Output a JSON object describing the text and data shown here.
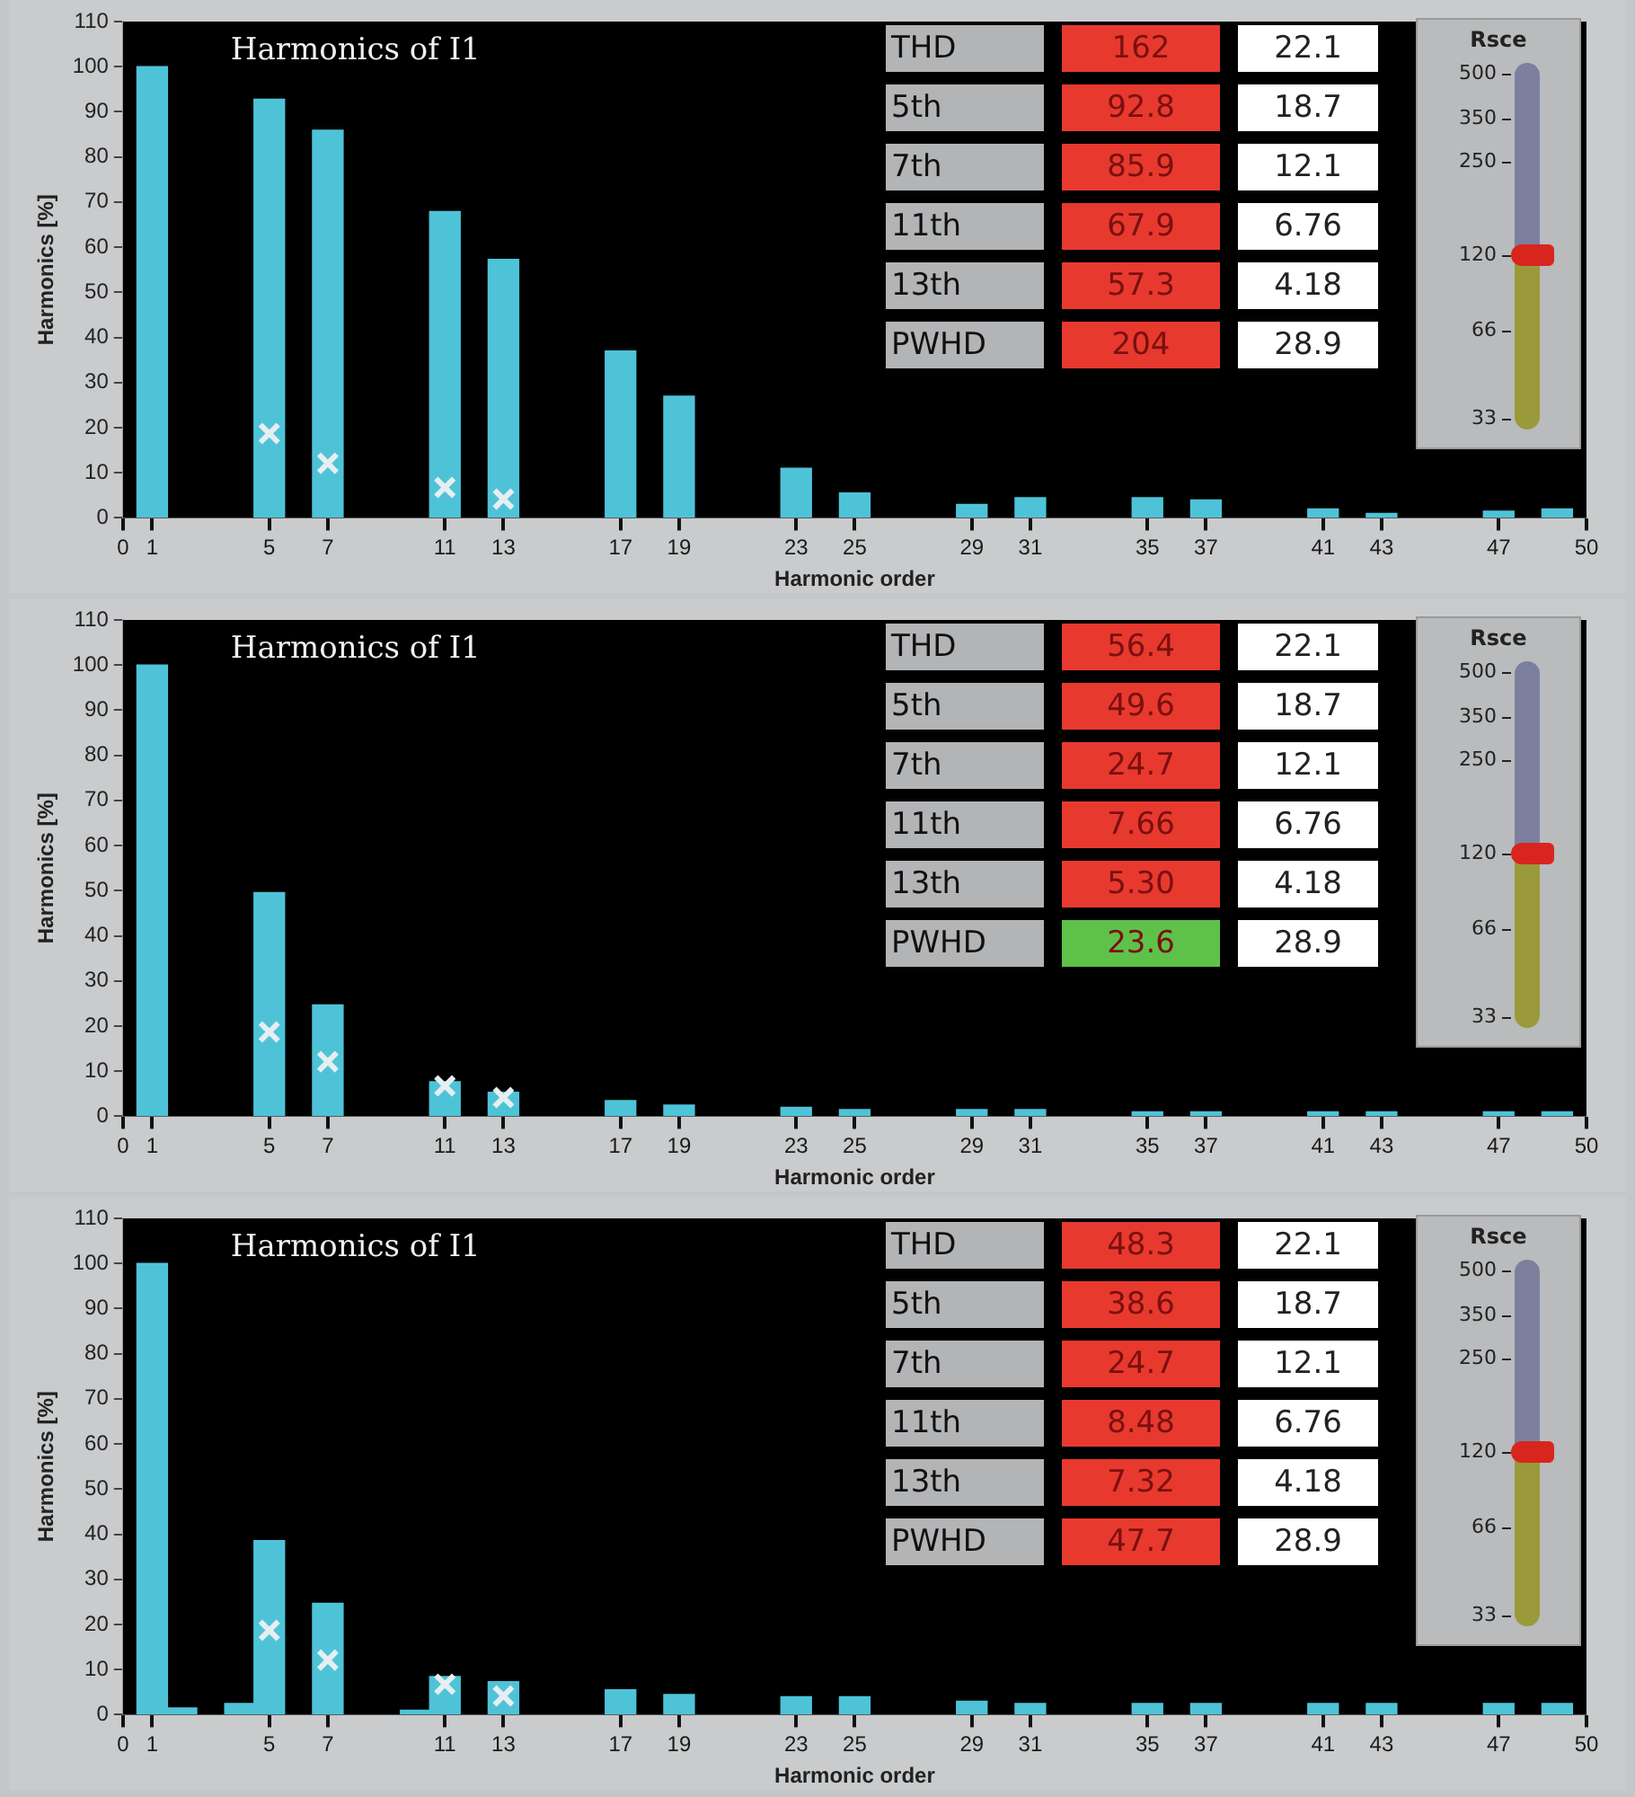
{
  "chart_data": [
    {
      "type": "bar",
      "title": "Harmonics of I1",
      "xlabel": "Harmonic order",
      "ylabel": "Harmonics [%]",
      "xlim": [
        0,
        50
      ],
      "xticks": [
        0,
        1,
        5,
        7,
        11,
        13,
        17,
        19,
        23,
        25,
        29,
        31,
        35,
        37,
        41,
        43,
        47,
        50
      ],
      "ylim": [
        0,
        110
      ],
      "yticks": [
        0,
        10,
        20,
        30,
        40,
        50,
        60,
        70,
        80,
        90,
        100,
        110
      ],
      "series": [
        {
          "color": "#4ec3d8",
          "x": [
            1,
            5,
            7,
            11,
            13,
            17,
            19,
            23,
            25,
            29,
            31,
            35,
            37,
            41,
            43,
            47,
            49
          ],
          "values": [
            100,
            92.8,
            85.9,
            67.9,
            57.3,
            37,
            27,
            11,
            5.5,
            3,
            4.5,
            4.5,
            4,
            2,
            1,
            1.5,
            2
          ]
        },
        {
          "type": "scatter",
          "color": "#e6eef0",
          "marker": "cross",
          "x": [
            5,
            7,
            11,
            13
          ],
          "values": [
            18.7,
            12.1,
            6.76,
            4.18
          ]
        }
      ],
      "annotations": [
        "THD",
        "162",
        "22.1",
        "5th",
        "92.8",
        "18.7",
        "7th",
        "85.9",
        "12.1",
        "11th",
        "67.9",
        "6.76",
        "13th",
        "57.3",
        "4.18",
        "PWHD",
        "204",
        "28.9",
        "Rsce",
        "500",
        "350",
        "250",
        "120",
        "66",
        "33"
      ]
    },
    {
      "type": "bar",
      "title": "Harmonics of I1",
      "xlabel": "Harmonic order",
      "ylabel": "Harmonics [%]",
      "xlim": [
        0,
        50
      ],
      "xticks": [
        0,
        1,
        5,
        7,
        11,
        13,
        17,
        19,
        23,
        25,
        29,
        31,
        35,
        37,
        41,
        43,
        47,
        50
      ],
      "ylim": [
        0,
        110
      ],
      "yticks": [
        0,
        10,
        20,
        30,
        40,
        50,
        60,
        70,
        80,
        90,
        100,
        110
      ],
      "series": [
        {
          "color": "#4ec3d8",
          "x": [
            1,
            5,
            7,
            11,
            13,
            17,
            19,
            23,
            25,
            29,
            31,
            35,
            37,
            41,
            43,
            47,
            49
          ],
          "values": [
            100,
            49.6,
            24.7,
            7.66,
            5.3,
            3.5,
            2.5,
            2,
            1.5,
            1.5,
            1.5,
            1,
            1,
            1,
            1,
            1,
            1
          ]
        },
        {
          "type": "scatter",
          "color": "#e6eef0",
          "marker": "cross",
          "x": [
            5,
            7,
            11,
            13
          ],
          "values": [
            18.7,
            12.1,
            6.76,
            4.18
          ]
        }
      ],
      "annotations": [
        "THD",
        "56.4",
        "22.1",
        "5th",
        "49.6",
        "18.7",
        "7th",
        "24.7",
        "12.1",
        "11th",
        "7.66",
        "6.76",
        "13th",
        "5.30",
        "4.18",
        "PWHD",
        "23.6",
        "28.9",
        "Rsce",
        "500",
        "350",
        "250",
        "120",
        "66",
        "33"
      ]
    },
    {
      "type": "bar",
      "title": "Harmonics of I1",
      "xlabel": "Harmonic order",
      "ylabel": "Harmonics [%]",
      "xlim": [
        0,
        50
      ],
      "xticks": [
        0,
        1,
        5,
        7,
        11,
        13,
        17,
        19,
        23,
        25,
        29,
        31,
        35,
        37,
        41,
        43,
        47,
        50
      ],
      "ylim": [
        0,
        110
      ],
      "yticks": [
        0,
        10,
        20,
        30,
        40,
        50,
        60,
        70,
        80,
        90,
        100,
        110
      ],
      "series": [
        {
          "color": "#4ec3d8",
          "x": [
            1,
            2,
            4,
            5,
            7,
            10,
            11,
            13,
            17,
            19,
            23,
            25,
            29,
            31,
            35,
            37,
            41,
            43,
            47,
            49
          ],
          "values": [
            100,
            1.5,
            2.5,
            38.6,
            24.7,
            1,
            8.48,
            7.32,
            5.5,
            4.5,
            4,
            4,
            3,
            2.5,
            2.5,
            2.5,
            2.5,
            2.5,
            2.5,
            2.5
          ]
        },
        {
          "type": "scatter",
          "color": "#e6eef0",
          "marker": "cross",
          "x": [
            5,
            7,
            11,
            13
          ],
          "values": [
            18.7,
            12.1,
            6.76,
            4.18
          ]
        }
      ],
      "annotations": [
        "THD",
        "48.3",
        "22.1",
        "5th",
        "38.6",
        "18.7",
        "7th",
        "24.7",
        "12.1",
        "11th",
        "8.48",
        "6.76",
        "13th",
        "7.32",
        "4.18",
        "PWHD",
        "47.7",
        "28.9",
        "Rsce",
        "500",
        "350",
        "250",
        "120",
        "66",
        "33"
      ]
    }
  ]
}
